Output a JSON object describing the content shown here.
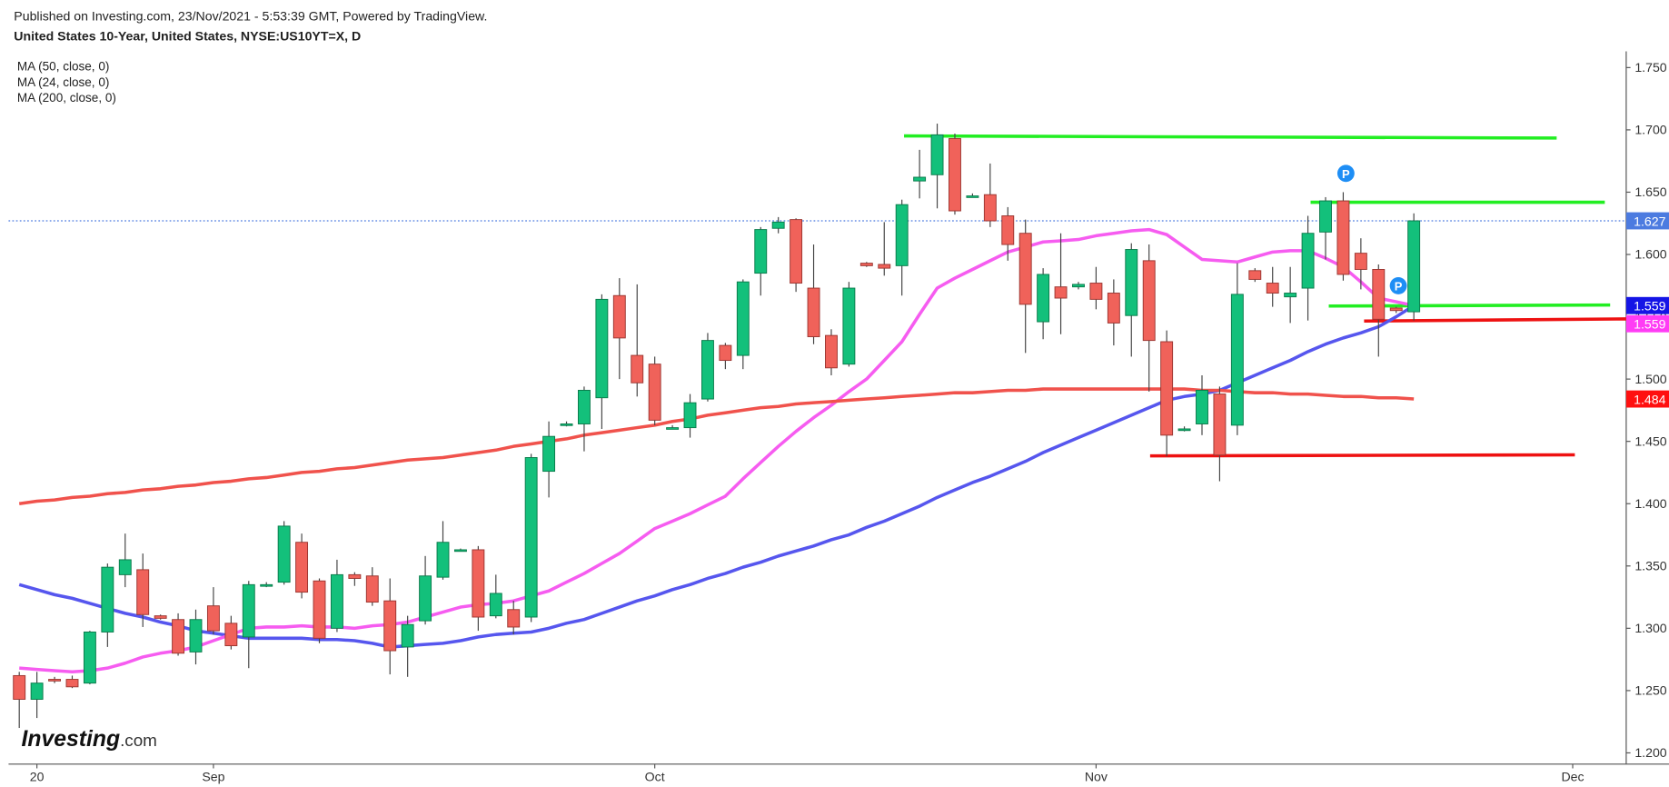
{
  "chart_data": {
    "type": "candlestick",
    "subtitle": "Published on Investing.com, 23/Nov/2021 - 5:53:39 GMT, Powered by TradingView.",
    "title": "United States 10-Year, United States, NYSE:US10YT=X, D",
    "logo": [
      "Investing",
      ".com"
    ],
    "categories": [
      null,
      "20",
      null,
      null,
      null,
      null,
      null,
      null,
      null,
      null,
      null,
      "Sep",
      null,
      null,
      null,
      null,
      null,
      null,
      null,
      null,
      null,
      null,
      null,
      null,
      null,
      null,
      null,
      null,
      null,
      null,
      null,
      null,
      null,
      null,
      null,
      null,
      "Oct",
      null,
      null,
      null,
      null,
      null,
      null,
      null,
      null,
      null,
      null,
      null,
      null,
      null,
      null,
      null,
      null,
      null,
      null,
      null,
      null,
      null,
      null,
      null,
      null,
      "Nov",
      null,
      null,
      null,
      null,
      null,
      null,
      null,
      null,
      null,
      null,
      null,
      null,
      null,
      null,
      null,
      null,
      null,
      null,
      null,
      null,
      null,
      null,
      null,
      null,
      null,
      null,
      "Dec",
      null,
      null,
      null
    ],
    "open": [
      1.262,
      1.243,
      1.259,
      1.259,
      1.256,
      1.297,
      1.343,
      1.347,
      1.31,
      1.307,
      1.281,
      1.318,
      1.304,
      1.293,
      1.335,
      1.337,
      1.369,
      1.338,
      1.3,
      1.343,
      1.342,
      1.322,
      1.285,
      1.306,
      1.341,
      1.363,
      1.363,
      1.31,
      1.315,
      1.309,
      1.426,
      1.464,
      1.464,
      1.485,
      1.567,
      1.519,
      1.512,
      1.461,
      1.461,
      1.484,
      1.527,
      1.519,
      1.585,
      1.621,
      1.628,
      1.573,
      1.535,
      1.512,
      1.593,
      1.592,
      1.591,
      1.659,
      1.664,
      1.693,
      1.647,
      1.648,
      1.631,
      1.617,
      1.546,
      1.574,
      1.574,
      1.577,
      1.569,
      1.551,
      1.595,
      1.53,
      1.46,
      1.464,
      1.488,
      1.463,
      1.587,
      1.577,
      1.566,
      1.573,
      1.618,
      1.643,
      1.601,
      1.588,
      1.557,
      1.554,
      null,
      null,
      null,
      null,
      null,
      null,
      null,
      null,
      null,
      null,
      null,
      null
    ],
    "high": [
      1.265,
      1.265,
      1.261,
      1.262,
      1.298,
      1.352,
      1.376,
      1.36,
      1.311,
      1.312,
      1.315,
      1.333,
      1.31,
      1.338,
      1.337,
      1.386,
      1.376,
      1.34,
      1.355,
      1.345,
      1.349,
      1.34,
      1.31,
      1.358,
      1.386,
      1.364,
      1.366,
      1.343,
      1.322,
      1.44,
      1.466,
      1.466,
      1.494,
      1.568,
      1.581,
      1.576,
      1.518,
      1.463,
      1.488,
      1.537,
      1.529,
      1.58,
      1.622,
      1.63,
      1.629,
      1.608,
      1.54,
      1.578,
      1.594,
      1.626,
      1.644,
      1.684,
      1.705,
      1.697,
      1.649,
      1.673,
      1.638,
      1.628,
      1.589,
      1.617,
      1.578,
      1.59,
      1.58,
      1.609,
      1.608,
      1.539,
      1.462,
      1.503,
      1.494,
      1.593,
      1.589,
      1.59,
      1.59,
      1.631,
      1.646,
      1.65,
      1.613,
      1.592,
      1.558,
      1.633,
      null,
      null,
      null,
      null,
      null,
      null,
      null,
      null,
      null,
      null,
      null,
      null
    ],
    "low": [
      1.22,
      1.228,
      1.256,
      1.252,
      1.255,
      1.285,
      1.333,
      1.301,
      1.307,
      1.278,
      1.271,
      1.295,
      1.283,
      1.268,
      1.333,
      1.335,
      1.324,
      1.288,
      1.297,
      1.334,
      1.318,
      1.263,
      1.261,
      1.303,
      1.339,
      1.362,
      1.298,
      1.308,
      1.295,
      1.305,
      1.405,
      1.462,
      1.442,
      1.46,
      1.5,
      1.486,
      1.463,
      1.46,
      1.453,
      1.482,
      1.508,
      1.508,
      1.567,
      1.617,
      1.57,
      1.528,
      1.503,
      1.51,
      1.59,
      1.583,
      1.567,
      1.645,
      1.637,
      1.632,
      1.646,
      1.622,
      1.595,
      1.521,
      1.532,
      1.536,
      1.572,
      1.556,
      1.527,
      1.518,
      1.49,
      1.438,
      1.458,
      1.455,
      1.418,
      1.455,
      1.578,
      1.558,
      1.545,
      1.547,
      1.596,
      1.579,
      1.572,
      1.518,
      1.553,
      1.547,
      null,
      null,
      null,
      null,
      null,
      null,
      null,
      null,
      null,
      null,
      null,
      null
    ],
    "close": [
      1.243,
      1.256,
      1.258,
      1.253,
      1.297,
      1.349,
      1.355,
      1.311,
      1.308,
      1.28,
      1.307,
      1.298,
      1.286,
      1.335,
      1.335,
      1.382,
      1.329,
      1.292,
      1.343,
      1.34,
      1.321,
      1.282,
      1.303,
      1.342,
      1.369,
      1.363,
      1.309,
      1.328,
      1.301,
      1.437,
      1.454,
      1.464,
      1.491,
      1.564,
      1.533,
      1.497,
      1.467,
      1.461,
      1.481,
      1.531,
      1.515,
      1.578,
      1.62,
      1.626,
      1.577,
      1.534,
      1.509,
      1.573,
      1.591,
      1.589,
      1.64,
      1.662,
      1.696,
      1.635,
      1.647,
      1.627,
      1.608,
      1.56,
      1.584,
      1.565,
      1.576,
      1.564,
      1.545,
      1.604,
      1.531,
      1.455,
      1.46,
      1.491,
      1.439,
      1.568,
      1.58,
      1.569,
      1.569,
      1.617,
      1.643,
      1.584,
      1.588,
      1.548,
      1.555,
      1.627,
      null,
      null,
      null,
      null,
      null,
      null,
      null,
      null,
      null,
      null,
      null,
      null
    ],
    "up_color": "#13c07b",
    "down_color": "#f0625a",
    "series": [
      {
        "name": "MA (50, close, 0)",
        "color": "#5656ee",
        "values": [
          1.335,
          1.331,
          1.327,
          1.324,
          1.32,
          1.316,
          1.312,
          1.309,
          1.305,
          1.302,
          1.298,
          1.296,
          1.294,
          1.292,
          1.292,
          1.292,
          1.292,
          1.291,
          1.291,
          1.29,
          1.288,
          1.285,
          1.286,
          1.287,
          1.288,
          1.29,
          1.293,
          1.295,
          1.296,
          1.297,
          1.3,
          1.304,
          1.307,
          1.312,
          1.317,
          1.322,
          1.326,
          1.331,
          1.335,
          1.34,
          1.344,
          1.349,
          1.353,
          1.358,
          1.362,
          1.366,
          1.371,
          1.375,
          1.381,
          1.386,
          1.392,
          1.398,
          1.405,
          1.411,
          1.417,
          1.422,
          1.428,
          1.434,
          1.441,
          1.447,
          1.453,
          1.459,
          1.465,
          1.471,
          1.477,
          1.483,
          1.486,
          1.488,
          1.491,
          1.497,
          1.503,
          1.509,
          1.515,
          1.522,
          1.528,
          1.533,
          1.537,
          1.542,
          1.55,
          1.559,
          null,
          null,
          null,
          null,
          null,
          null,
          null,
          null,
          null,
          null,
          null,
          null
        ]
      },
      {
        "name": "MA (24, close, 0)",
        "color": "#f65cf0",
        "values": [
          1.268,
          1.267,
          1.266,
          1.265,
          1.266,
          1.268,
          1.272,
          1.277,
          1.28,
          1.282,
          1.285,
          1.29,
          1.295,
          1.3,
          1.301,
          1.301,
          1.302,
          1.301,
          1.301,
          1.3,
          1.302,
          1.303,
          1.305,
          1.309,
          1.313,
          1.317,
          1.319,
          1.32,
          1.322,
          1.326,
          1.33,
          1.337,
          1.344,
          1.352,
          1.36,
          1.37,
          1.38,
          1.386,
          1.392,
          1.399,
          1.406,
          1.42,
          1.433,
          1.446,
          1.458,
          1.469,
          1.479,
          1.49,
          1.5,
          1.515,
          1.53,
          1.552,
          1.573,
          1.581,
          1.588,
          1.595,
          1.602,
          1.606,
          1.61,
          1.611,
          1.612,
          1.615,
          1.617,
          1.619,
          1.62,
          1.616,
          1.606,
          1.596,
          1.595,
          1.594,
          1.598,
          1.602,
          1.603,
          1.603,
          1.597,
          1.59,
          1.578,
          1.565,
          1.562,
          1.559,
          null,
          null,
          null,
          null,
          null,
          null,
          null,
          null,
          null,
          null,
          null,
          null
        ]
      },
      {
        "name": "MA (200, close, 0)",
        "color": "#f0524c",
        "values": [
          1.4,
          1.402,
          1.403,
          1.405,
          1.406,
          1.408,
          1.409,
          1.411,
          1.412,
          1.414,
          1.415,
          1.417,
          1.418,
          1.42,
          1.421,
          1.423,
          1.425,
          1.426,
          1.428,
          1.429,
          1.431,
          1.433,
          1.435,
          1.436,
          1.437,
          1.439,
          1.441,
          1.443,
          1.446,
          1.448,
          1.45,
          1.452,
          1.455,
          1.457,
          1.459,
          1.461,
          1.463,
          1.466,
          1.468,
          1.471,
          1.473,
          1.475,
          1.477,
          1.478,
          1.48,
          1.481,
          1.482,
          1.483,
          1.484,
          1.485,
          1.486,
          1.487,
          1.488,
          1.489,
          1.489,
          1.49,
          1.491,
          1.491,
          1.492,
          1.492,
          1.492,
          1.492,
          1.492,
          1.492,
          1.492,
          1.492,
          1.492,
          1.491,
          1.491,
          1.49,
          1.489,
          1.489,
          1.488,
          1.488,
          1.487,
          1.486,
          1.486,
          1.485,
          1.485,
          1.484,
          null,
          null,
          null,
          null,
          null,
          null,
          null,
          null,
          null,
          null,
          null,
          null
        ]
      }
    ],
    "price_tags": [
      {
        "value": 1.627,
        "label": "1.627",
        "color": "#4c7be0"
      },
      {
        "value": 1.559,
        "label": "1.559",
        "color": "#1515e6"
      },
      {
        "value": 1.559,
        "label": "1.559",
        "color": "#ff3cf5"
      },
      {
        "value": 1.484,
        "label": "1.484",
        "color": "#ff1010"
      }
    ],
    "ylim": [
      1.191,
      1.763
    ],
    "yticks": [
      {
        "value": 1.2,
        "label": "1.200"
      },
      {
        "value": 1.25,
        "label": "1.250"
      },
      {
        "value": 1.3,
        "label": "1.300"
      },
      {
        "value": 1.35,
        "label": "1.350"
      },
      {
        "value": 1.4,
        "label": "1.400"
      },
      {
        "value": 1.45,
        "label": "1.450"
      },
      {
        "value": 1.5,
        "label": "1.500"
      },
      {
        "value": 1.55,
        "label": "1.550"
      },
      {
        "value": 1.6,
        "label": "1.600"
      },
      {
        "value": 1.65,
        "label": "1.650"
      },
      {
        "value": 1.7,
        "label": "1.700"
      },
      {
        "value": 1.75,
        "label": "1.750"
      }
    ],
    "grid": false
  }
}
